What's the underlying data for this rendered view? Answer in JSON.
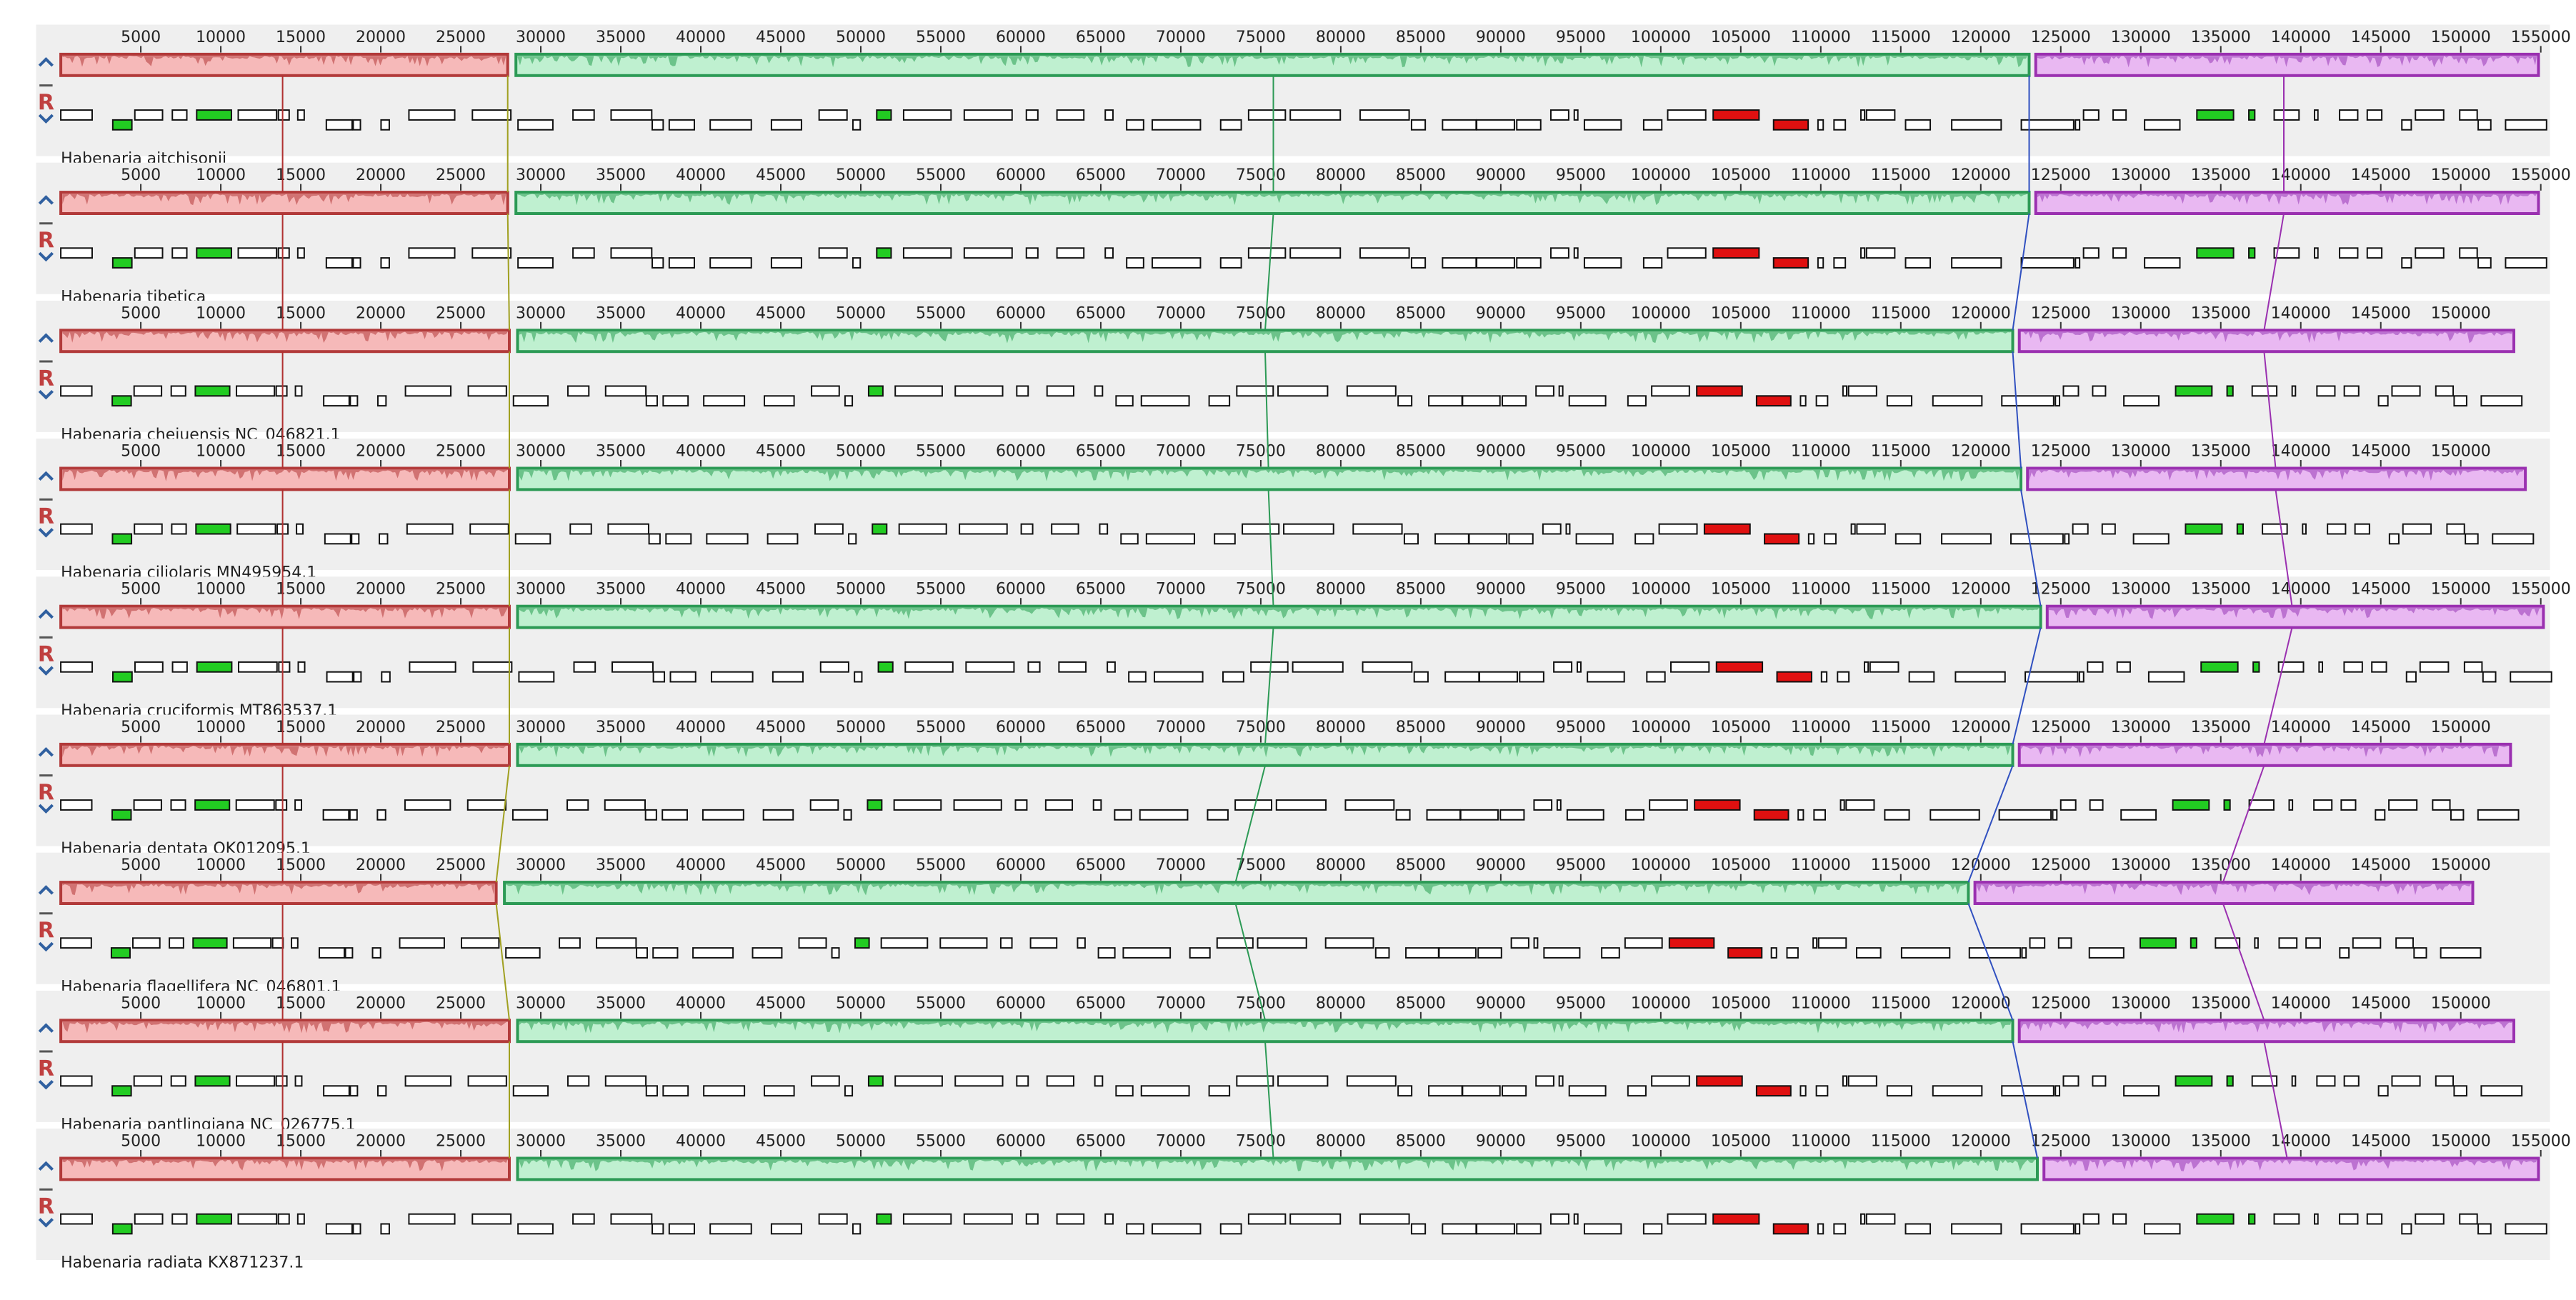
{
  "reverse_label": "R",
  "tracks": [
    {
      "name": "Habenaria aitchisonii",
      "ticks": [
        5000,
        10000,
        15000,
        20000,
        25000,
        30000,
        35000,
        40000,
        45000,
        50000,
        55000,
        60000,
        65000,
        70000,
        75000,
        80000,
        85000,
        90000,
        95000,
        100000,
        105000,
        110000,
        115000,
        120000,
        125000,
        130000,
        135000,
        140000,
        145000,
        150000,
        155000
      ]
    },
    {
      "name": "Habenaria tibetica",
      "ticks": [
        5000,
        10000,
        15000,
        20000,
        25000,
        30000,
        35000,
        40000,
        45000,
        50000,
        55000,
        60000,
        65000,
        70000,
        75000,
        80000,
        85000,
        90000,
        95000,
        100000,
        105000,
        110000,
        115000,
        120000,
        125000,
        130000,
        135000,
        140000,
        145000,
        150000,
        155000
      ]
    },
    {
      "name": "Habenaria chejuensis NC_046821.1",
      "ticks": [
        5000,
        10000,
        15000,
        20000,
        25000,
        30000,
        35000,
        40000,
        45000,
        50000,
        55000,
        60000,
        65000,
        70000,
        75000,
        80000,
        85000,
        90000,
        95000,
        100000,
        105000,
        110000,
        115000,
        120000,
        125000,
        130000,
        135000,
        140000,
        145000,
        150000
      ]
    },
    {
      "name": "Habenaria ciliolaris MN495954.1",
      "ticks": [
        5000,
        10000,
        15000,
        20000,
        25000,
        30000,
        35000,
        40000,
        45000,
        50000,
        55000,
        60000,
        65000,
        70000,
        75000,
        80000,
        85000,
        90000,
        95000,
        100000,
        105000,
        110000,
        115000,
        120000,
        125000,
        130000,
        135000,
        140000,
        145000,
        150000
      ]
    },
    {
      "name": "Habenaria cruciformis MT863537.1",
      "ticks": [
        5000,
        10000,
        15000,
        20000,
        25000,
        30000,
        35000,
        40000,
        45000,
        50000,
        55000,
        60000,
        65000,
        70000,
        75000,
        80000,
        85000,
        90000,
        95000,
        100000,
        105000,
        110000,
        115000,
        120000,
        125000,
        130000,
        135000,
        140000,
        145000,
        150000,
        155000
      ]
    },
    {
      "name": "Habenaria dentata OK012095.1",
      "ticks": [
        5000,
        10000,
        15000,
        20000,
        25000,
        30000,
        35000,
        40000,
        45000,
        50000,
        55000,
        60000,
        65000,
        70000,
        75000,
        80000,
        85000,
        90000,
        95000,
        100000,
        105000,
        110000,
        115000,
        120000,
        125000,
        130000,
        135000,
        140000,
        145000,
        150000
      ]
    },
    {
      "name": "Habenaria flagellifera NC_046801.1",
      "ticks": [
        5000,
        10000,
        15000,
        20000,
        25000,
        30000,
        35000,
        40000,
        45000,
        50000,
        55000,
        60000,
        65000,
        70000,
        75000,
        80000,
        85000,
        90000,
        95000,
        100000,
        105000,
        110000,
        115000,
        120000,
        125000,
        130000,
        135000,
        140000,
        145000,
        150000
      ]
    },
    {
      "name": "Habenaria pantlingiana NC_026775.1",
      "ticks": [
        5000,
        10000,
        15000,
        20000,
        25000,
        30000,
        35000,
        40000,
        45000,
        50000,
        55000,
        60000,
        65000,
        70000,
        75000,
        80000,
        85000,
        90000,
        95000,
        100000,
        105000,
        110000,
        115000,
        120000,
        125000,
        130000,
        135000,
        140000,
        145000,
        150000
      ]
    },
    {
      "name": "Habenaria radiata KX871237.1",
      "ticks": [
        5000,
        10000,
        15000,
        20000,
        25000,
        30000,
        35000,
        40000,
        45000,
        50000,
        55000,
        60000,
        65000,
        70000,
        75000,
        80000,
        85000,
        90000,
        95000,
        100000,
        105000,
        110000,
        115000,
        120000,
        125000,
        130000,
        135000,
        140000,
        145000,
        150000,
        155000
      ]
    }
  ]
}
